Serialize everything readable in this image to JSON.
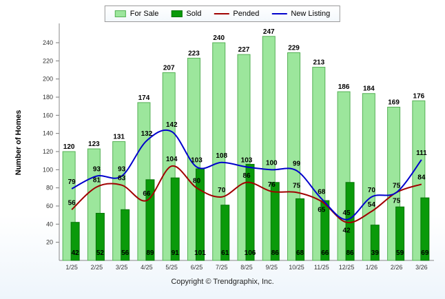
{
  "legend": [
    {
      "label": "For Sale",
      "type": "bar",
      "color": "#9ce69c",
      "border": "#55b055"
    },
    {
      "label": "Sold",
      "type": "bar",
      "color": "#0a9a0a",
      "border": "#077507"
    },
    {
      "label": "Pended",
      "type": "line",
      "color": "#a00000"
    },
    {
      "label": "New Listing",
      "type": "line",
      "color": "#0000cc"
    }
  ],
  "footer": "Copyright © Trendgraphix, Inc.",
  "chart_data": {
    "type": "bar",
    "subtype": "grouped-bars-with-overlaid-lines",
    "title": "",
    "ylabel": "Number of Homes",
    "xlabel": "",
    "categories": [
      "1/25",
      "2/25",
      "3/25",
      "4/25",
      "5/25",
      "6/25",
      "7/25",
      "8/25",
      "9/25",
      "10/25",
      "11/25",
      "12/25",
      "1/26",
      "2/26",
      "3/26"
    ],
    "series": [
      {
        "name": "For Sale",
        "type": "bar",
        "color": "#9ce69c",
        "border": "#55b055",
        "values": [
          120,
          123,
          131,
          174,
          207,
          223,
          240,
          227,
          247,
          229,
          213,
          186,
          184,
          169,
          176
        ]
      },
      {
        "name": "Sold",
        "type": "bar",
        "color": "#0a9a0a",
        "border": "#077507",
        "values": [
          42,
          52,
          56,
          89,
          91,
          101,
          61,
          106,
          86,
          68,
          66,
          86,
          39,
          59,
          69
        ]
      },
      {
        "name": "Pended",
        "type": "line",
        "color": "#a00000",
        "values": [
          56,
          81,
          83,
          66,
          104,
          80,
          70,
          86,
          76,
          75,
          65,
          42,
          54,
          75,
          84
        ]
      },
      {
        "name": "New Listing",
        "type": "line",
        "color": "#0000cc",
        "values": [
          79,
          93,
          93,
          132,
          142,
          103,
          108,
          103,
          100,
          99,
          68,
          45,
          70,
          75,
          111
        ]
      }
    ],
    "ylim": [
      0,
      260
    ],
    "yticks": [
      20,
      40,
      60,
      80,
      100,
      120,
      140,
      160,
      180,
      200,
      220,
      240
    ],
    "grid": false,
    "legend_position": "top-center"
  }
}
